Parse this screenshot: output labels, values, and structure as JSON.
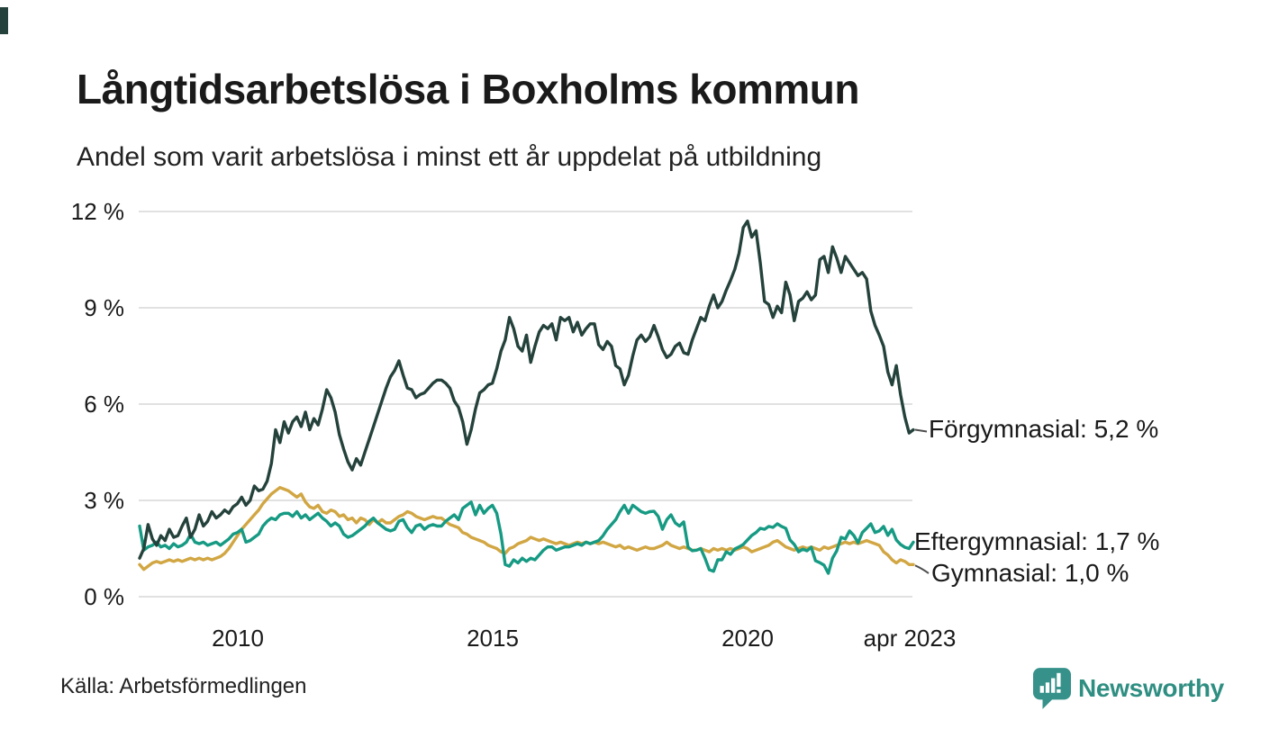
{
  "title": "Långtidsarbetslösa i Boxholms kommun",
  "subtitle": "Andel som varit arbetslösa i minst ett år uppdelat på utbildning",
  "source": "Källa: Arbetsförmedlingen",
  "brand": {
    "name": "Newsworthy",
    "color": "#2F8E82",
    "mark_color": "#35918A"
  },
  "colors": {
    "background": "#ffffff",
    "grid": "#e1e1e1",
    "text": "#1a1a1a",
    "connector": "#4d4d4d",
    "forgymnasial": "#24423B",
    "eftergymnasial": "#169A83",
    "gymnasial": "#D1A643"
  },
  "chart_data": {
    "type": "line",
    "title": "Långtidsarbetslösa i Boxholms kommun",
    "subtitle": "Andel som varit arbetslösa i minst ett år uppdelat på utbildning",
    "unit": "%",
    "x_interval": "monthly",
    "x_start": "2008-02",
    "x_end": "2023-04",
    "ylim": [
      0,
      12
    ],
    "grid": true,
    "legend_position": "right-of-line-end",
    "xticks": [
      "2010",
      "2015",
      "2020",
      "apr 2023"
    ],
    "yticks": [
      "12 %",
      "9 %",
      "6 %",
      "3 %",
      "0 %"
    ],
    "ytick_values": [
      12,
      9,
      6,
      3,
      0
    ],
    "series": [
      {
        "name": "Förgymnasial",
        "label": "Förgymnasial: 5,2 %",
        "last_value": 5.2,
        "color": "#24423B",
        "values": [
          1.2,
          1.5,
          2.25,
          1.8,
          1.6,
          1.9,
          1.75,
          2.1,
          1.85,
          1.9,
          2.2,
          2.45,
          1.85,
          2.1,
          2.55,
          2.2,
          2.35,
          2.65,
          2.45,
          2.55,
          2.7,
          2.6,
          2.8,
          2.9,
          3.1,
          2.85,
          3.0,
          3.45,
          3.3,
          3.35,
          3.6,
          4.15,
          5.2,
          4.8,
          5.45,
          5.1,
          5.45,
          5.6,
          5.3,
          5.75,
          5.2,
          5.55,
          5.35,
          5.85,
          6.45,
          6.2,
          5.75,
          5.05,
          4.6,
          4.2,
          3.95,
          4.3,
          4.1,
          4.5,
          4.9,
          5.3,
          5.7,
          6.1,
          6.5,
          6.85,
          7.05,
          7.35,
          6.9,
          6.5,
          6.45,
          6.2,
          6.3,
          6.35,
          6.5,
          6.65,
          6.75,
          6.75,
          6.65,
          6.5,
          6.1,
          5.9,
          5.45,
          4.75,
          5.2,
          5.85,
          6.35,
          6.45,
          6.6,
          6.65,
          7.1,
          7.65,
          8.0,
          8.7,
          8.35,
          7.8,
          7.65,
          8.15,
          7.3,
          7.8,
          8.25,
          8.45,
          8.35,
          8.5,
          8.0,
          8.7,
          8.6,
          8.7,
          8.25,
          8.55,
          8.15,
          8.35,
          8.5,
          8.5,
          7.85,
          7.7,
          7.95,
          7.8,
          7.2,
          7.1,
          6.6,
          6.9,
          7.5,
          8.0,
          8.15,
          7.95,
          8.1,
          8.45,
          8.1,
          7.7,
          7.45,
          7.55,
          7.8,
          7.9,
          7.6,
          7.55,
          8.0,
          8.35,
          8.7,
          8.6,
          9.05,
          9.4,
          9.0,
          9.2,
          9.55,
          9.85,
          10.2,
          10.7,
          11.5,
          11.7,
          11.2,
          11.4,
          10.4,
          9.2,
          9.1,
          8.7,
          9.05,
          8.85,
          9.8,
          9.4,
          8.6,
          9.2,
          9.3,
          9.5,
          9.25,
          9.4,
          10.5,
          10.6,
          10.1,
          10.9,
          10.55,
          10.1,
          10.6,
          10.4,
          10.2,
          10.0,
          10.1,
          9.9,
          8.9,
          8.45,
          8.15,
          7.8,
          7.0,
          6.6,
          7.2,
          6.3,
          5.6,
          5.1,
          5.2
        ]
      },
      {
        "name": "Eftergymnasial",
        "label": "Eftergymnasial: 1,7 %",
        "last_value": 1.7,
        "color": "#169A83",
        "values": [
          2.2,
          1.45,
          1.55,
          1.6,
          1.7,
          1.55,
          1.6,
          1.5,
          1.65,
          1.55,
          1.6,
          1.7,
          1.95,
          1.7,
          1.65,
          1.7,
          1.6,
          1.65,
          1.7,
          1.6,
          1.7,
          1.8,
          1.95,
          2.0,
          2.1,
          1.7,
          1.75,
          1.85,
          1.95,
          2.2,
          2.35,
          2.45,
          2.4,
          2.55,
          2.6,
          2.6,
          2.5,
          2.65,
          2.45,
          2.55,
          2.4,
          2.5,
          2.6,
          2.45,
          2.35,
          2.2,
          2.3,
          2.2,
          1.95,
          1.85,
          1.9,
          2.0,
          2.1,
          2.2,
          2.35,
          2.45,
          2.3,
          2.2,
          2.1,
          2.05,
          2.1,
          2.35,
          2.4,
          2.15,
          2.0,
          2.2,
          2.25,
          2.1,
          2.2,
          2.25,
          2.2,
          2.2,
          2.35,
          2.45,
          2.55,
          2.4,
          2.75,
          2.85,
          2.95,
          2.55,
          2.85,
          2.6,
          2.75,
          2.85,
          2.6,
          1.95,
          1.0,
          0.95,
          1.15,
          1.05,
          1.2,
          1.1,
          1.2,
          1.15,
          1.3,
          1.45,
          1.55,
          1.55,
          1.45,
          1.5,
          1.55,
          1.55,
          1.6,
          1.65,
          1.6,
          1.7,
          1.65,
          1.7,
          1.75,
          1.9,
          2.1,
          2.25,
          2.4,
          2.65,
          2.85,
          2.6,
          2.85,
          2.75,
          2.65,
          2.6,
          2.65,
          2.66,
          2.5,
          2.1,
          2.4,
          2.55,
          2.3,
          2.2,
          2.33,
          1.54,
          1.43,
          1.45,
          1.5,
          1.2,
          0.84,
          0.79,
          1.15,
          1.15,
          1.4,
          1.32,
          1.49,
          1.55,
          1.63,
          1.77,
          1.91,
          2.0,
          2.13,
          2.1,
          2.19,
          2.16,
          2.27,
          2.19,
          2.13,
          1.77,
          1.63,
          1.4,
          1.48,
          1.43,
          1.54,
          1.12,
          1.06,
          0.98,
          0.73,
          1.2,
          1.43,
          1.85,
          1.8,
          2.05,
          1.91,
          1.68,
          2.0,
          2.13,
          2.27,
          2.0,
          2.05,
          2.19,
          1.91,
          2.1,
          1.77,
          1.63,
          1.54,
          1.5,
          1.7
        ]
      },
      {
        "name": "Gymnasial",
        "label": "Gymnasial: 1,0 %",
        "last_value": 1.0,
        "color": "#D1A643",
        "values": [
          1.0,
          0.85,
          0.95,
          1.05,
          1.1,
          1.05,
          1.1,
          1.15,
          1.1,
          1.15,
          1.1,
          1.15,
          1.2,
          1.15,
          1.2,
          1.15,
          1.2,
          1.15,
          1.2,
          1.25,
          1.35,
          1.5,
          1.7,
          1.9,
          2.1,
          2.25,
          2.4,
          2.55,
          2.7,
          2.9,
          3.05,
          3.2,
          3.3,
          3.4,
          3.35,
          3.3,
          3.2,
          3.1,
          3.2,
          2.95,
          2.8,
          2.75,
          2.85,
          2.65,
          2.6,
          2.7,
          2.65,
          2.5,
          2.55,
          2.4,
          2.45,
          2.3,
          2.45,
          2.4,
          2.25,
          2.4,
          2.3,
          2.4,
          2.3,
          2.3,
          2.4,
          2.5,
          2.55,
          2.65,
          2.6,
          2.5,
          2.45,
          2.4,
          2.45,
          2.5,
          2.45,
          2.45,
          2.35,
          2.25,
          2.2,
          2.15,
          2.0,
          1.95,
          1.85,
          1.8,
          1.75,
          1.7,
          1.6,
          1.55,
          1.5,
          1.4,
          1.35,
          1.5,
          1.55,
          1.65,
          1.7,
          1.75,
          1.85,
          1.8,
          1.75,
          1.8,
          1.75,
          1.7,
          1.65,
          1.7,
          1.65,
          1.6,
          1.65,
          1.7,
          1.65,
          1.7,
          1.65,
          1.7,
          1.65,
          1.7,
          1.65,
          1.6,
          1.55,
          1.6,
          1.5,
          1.55,
          1.5,
          1.45,
          1.5,
          1.55,
          1.5,
          1.5,
          1.55,
          1.6,
          1.7,
          1.6,
          1.55,
          1.5,
          1.55,
          1.5,
          1.45,
          1.45,
          1.5,
          1.45,
          1.4,
          1.5,
          1.45,
          1.5,
          1.45,
          1.5,
          1.45,
          1.5,
          1.55,
          1.5,
          1.4,
          1.45,
          1.5,
          1.55,
          1.6,
          1.7,
          1.75,
          1.65,
          1.55,
          1.5,
          1.45,
          1.5,
          1.55,
          1.5,
          1.55,
          1.5,
          1.45,
          1.55,
          1.5,
          1.55,
          1.6,
          1.65,
          1.7,
          1.65,
          1.7,
          1.65,
          1.7,
          1.75,
          1.7,
          1.65,
          1.6,
          1.4,
          1.3,
          1.15,
          1.05,
          1.15,
          1.1,
          1.0,
          1.0
        ]
      }
    ]
  }
}
